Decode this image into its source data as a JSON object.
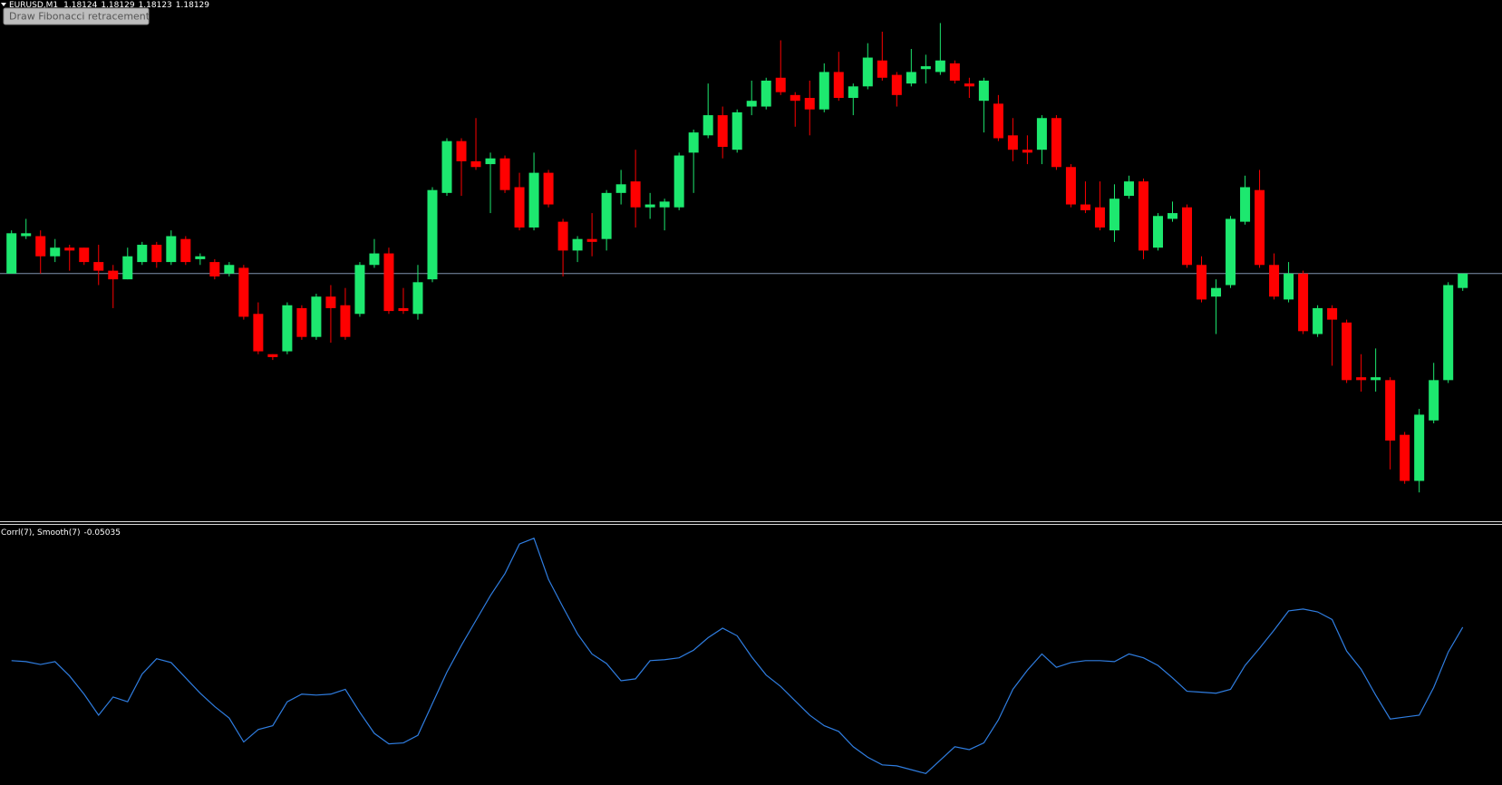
{
  "chart_data": {
    "type": "candlestick",
    "symbol": "EURUSD,M1",
    "open": [
      1.18129,
      1.18142,
      1.18142,
      1.18135,
      1.18138,
      1.18138,
      1.18133,
      1.1813,
      1.18127,
      1.18133,
      1.18139,
      1.18133,
      1.18141,
      1.18134,
      1.18133,
      1.18129,
      1.18131,
      1.18115,
      1.18101,
      1.18102,
      1.18117,
      1.18107,
      1.18121,
      1.18118,
      1.18115,
      1.18132,
      1.18136,
      1.18117,
      1.18115,
      1.18127,
      1.18157,
      1.18175,
      1.18168,
      1.18167,
      1.18169,
      1.18159,
      1.18145,
      1.18164,
      1.18147,
      1.18137,
      1.18141,
      1.18141,
      1.18157,
      1.18161,
      1.18152,
      1.18152,
      1.18152,
      1.18171,
      1.18177,
      1.18184,
      1.18172,
      1.18187,
      1.18187,
      1.18197,
      1.18191,
      1.1819,
      1.18186,
      1.18199,
      1.1819,
      1.18194,
      1.18203,
      1.18198,
      1.18195,
      1.182,
      1.18199,
      1.18202,
      1.18195,
      1.18189,
      1.18188,
      1.18177,
      1.18172,
      1.18172,
      1.18183,
      1.18166,
      1.18153,
      1.18152,
      1.18144,
      1.18156,
      1.18161,
      1.18138,
      1.18148,
      1.18152,
      1.18132,
      1.18121,
      1.18125,
      1.18147,
      1.18158,
      1.18132,
      1.1812,
      1.18129,
      1.18108,
      1.18117,
      1.18112,
      1.18093,
      1.18092,
      1.18092,
      1.18073,
      1.18057,
      1.18078,
      1.18092,
      1.18124
    ],
    "high": [
      1.18144,
      1.18148,
      1.18144,
      1.18141,
      1.18139,
      1.18138,
      1.18139,
      1.18132,
      1.18138,
      1.1814,
      1.1814,
      1.18144,
      1.18142,
      1.18136,
      1.18134,
      1.18133,
      1.18132,
      1.18119,
      1.18101,
      1.18119,
      1.18118,
      1.18122,
      1.18125,
      1.18124,
      1.18133,
      1.18141,
      1.18138,
      1.18124,
      1.18132,
      1.18159,
      1.18176,
      1.18176,
      1.18183,
      1.18171,
      1.1817,
      1.18164,
      1.18171,
      1.18165,
      1.18148,
      1.18142,
      1.1815,
      1.18158,
      1.18165,
      1.18172,
      1.18157,
      1.18155,
      1.18171,
      1.18179,
      1.18195,
      1.18187,
      1.18186,
      1.18196,
      1.18197,
      1.1821,
      1.18192,
      1.18196,
      1.18202,
      1.18206,
      1.18195,
      1.18209,
      1.18213,
      1.18199,
      1.18207,
      1.18205,
      1.18216,
      1.18203,
      1.18197,
      1.18197,
      1.18191,
      1.18183,
      1.18177,
      1.18184,
      1.18184,
      1.18167,
      1.18161,
      1.18161,
      1.1816,
      1.18163,
      1.18162,
      1.1815,
      1.18154,
      1.18153,
      1.18135,
      1.18127,
      1.18149,
      1.18163,
      1.18165,
      1.18136,
      1.18133,
      1.1813,
      1.18118,
      1.18118,
      1.18113,
      1.18101,
      1.18103,
      1.18093,
      1.18074,
      1.18082,
      1.18098,
      1.18126,
      1.18129
    ],
    "low": [
      1.18129,
      1.18141,
      1.18129,
      1.18133,
      1.1813,
      1.18132,
      1.18125,
      1.18117,
      1.18127,
      1.18132,
      1.18131,
      1.18132,
      1.18132,
      1.18132,
      1.18127,
      1.18128,
      1.18113,
      1.18101,
      1.18099,
      1.18101,
      1.18106,
      1.18106,
      1.18105,
      1.18106,
      1.18114,
      1.18131,
      1.18115,
      1.18115,
      1.18113,
      1.18126,
      1.18156,
      1.18156,
      1.18165,
      1.1815,
      1.18157,
      1.18144,
      1.18144,
      1.18152,
      1.18128,
      1.18133,
      1.18135,
      1.18137,
      1.18153,
      1.18145,
      1.18148,
      1.18144,
      1.18151,
      1.18157,
      1.18176,
      1.18169,
      1.18171,
      1.18184,
      1.18186,
      1.18191,
      1.1818,
      1.18177,
      1.18185,
      1.18189,
      1.18184,
      1.18193,
      1.18196,
      1.18187,
      1.18194,
      1.18195,
      1.18198,
      1.18195,
      1.1819,
      1.18178,
      1.18175,
      1.18168,
      1.18167,
      1.18167,
      1.18165,
      1.18152,
      1.1815,
      1.18144,
      1.1814,
      1.18155,
      1.18134,
      1.18137,
      1.18147,
      1.18131,
      1.18119,
      1.18108,
      1.18124,
      1.18146,
      1.18131,
      1.1812,
      1.18119,
      1.18108,
      1.18107,
      1.18097,
      1.18091,
      1.18088,
      1.18088,
      1.18061,
      1.18056,
      1.18053,
      1.18077,
      1.18091,
      1.18123
    ],
    "close": [
      1.18143,
      1.18143,
      1.18135,
      1.18138,
      1.18137,
      1.18133,
      1.1813,
      1.18127,
      1.18135,
      1.18139,
      1.18133,
      1.18142,
      1.18133,
      1.18135,
      1.18128,
      1.18132,
      1.18114,
      1.18102,
      1.181,
      1.18118,
      1.18107,
      1.18121,
      1.18117,
      1.18107,
      1.18132,
      1.18136,
      1.18116,
      1.18116,
      1.18126,
      1.18158,
      1.18175,
      1.18168,
      1.18166,
      1.18169,
      1.18158,
      1.18145,
      1.18164,
      1.18153,
      1.18137,
      1.18141,
      1.1814,
      1.18157,
      1.1816,
      1.18152,
      1.18153,
      1.18154,
      1.1817,
      1.18178,
      1.18184,
      1.18173,
      1.18185,
      1.18189,
      1.18196,
      1.18192,
      1.18189,
      1.18186,
      1.18199,
      1.1819,
      1.18194,
      1.18204,
      1.18197,
      1.18191,
      1.18199,
      1.18201,
      1.18203,
      1.18196,
      1.18194,
      1.18196,
      1.18176,
      1.18172,
      1.18171,
      1.18183,
      1.18166,
      1.18153,
      1.18151,
      1.18145,
      1.18155,
      1.18161,
      1.18137,
      1.18149,
      1.1815,
      1.18132,
      1.1812,
      1.18124,
      1.18148,
      1.18159,
      1.18132,
      1.18121,
      1.18129,
      1.18109,
      1.18117,
      1.18113,
      1.18092,
      1.18092,
      1.18093,
      1.18071,
      1.18057,
      1.1808,
      1.18092,
      1.18125,
      1.18129
    ],
    "ylim": [
      1.18043,
      1.18224
    ],
    "up_color": "#1de86f",
    "down_color": "#ff0000",
    "price_line_color": "#7f93ad",
    "indicator": {
      "type": "line",
      "name": "Corrl(7), Smooth(7)",
      "color": "#2f7de0",
      "ylim": [
        -0.71,
        0.378
      ],
      "values": [
        -0.19,
        -0.194,
        -0.206,
        -0.194,
        -0.254,
        -0.33,
        -0.418,
        -0.342,
        -0.362,
        -0.246,
        -0.182,
        -0.198,
        -0.262,
        -0.326,
        -0.382,
        -0.43,
        -0.53,
        -0.478,
        -0.462,
        -0.362,
        -0.33,
        -0.334,
        -0.33,
        -0.31,
        -0.406,
        -0.494,
        -0.538,
        -0.534,
        -0.502,
        -0.37,
        -0.238,
        -0.126,
        -0.022,
        0.082,
        0.174,
        0.298,
        0.322,
        0.15,
        0.034,
        -0.078,
        -0.162,
        -0.202,
        -0.274,
        -0.266,
        -0.19,
        -0.186,
        -0.178,
        -0.146,
        -0.094,
        -0.054,
        -0.086,
        -0.174,
        -0.25,
        -0.298,
        -0.358,
        -0.418,
        -0.462,
        -0.486,
        -0.55,
        -0.594,
        -0.626,
        -0.63,
        -0.646,
        -0.662,
        -0.606,
        -0.55,
        -0.562,
        -0.534,
        -0.438,
        -0.31,
        -0.23,
        -0.162,
        -0.218,
        -0.198,
        -0.19,
        -0.19,
        -0.194,
        -0.162,
        -0.178,
        -0.21,
        -0.262,
        -0.318,
        -0.322,
        -0.326,
        -0.31,
        -0.21,
        -0.138,
        -0.062,
        0.018,
        0.026,
        0.014,
        -0.018,
        -0.15,
        -0.226,
        -0.334,
        -0.434,
        -0.426,
        -0.418,
        -0.302,
        -0.154,
        -0.05035
      ]
    }
  },
  "tooltip": "Draw Fibonacci retracement"
}
